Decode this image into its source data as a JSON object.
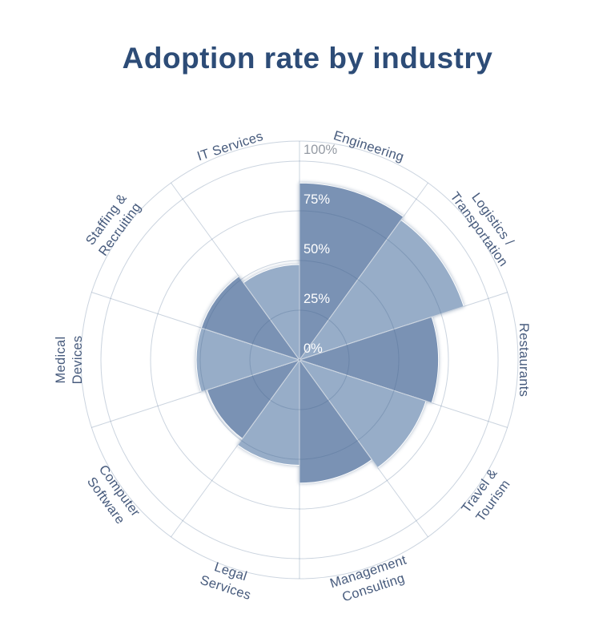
{
  "chart_data": {
    "type": "bar",
    "subtype": "polar-rose",
    "title": "Adoption rate by industry",
    "categories": [
      "Engineering",
      "Logistics / Transportation",
      "Restaurants",
      "Travel & Tourism",
      "Management Consulting",
      "Legal Services",
      "Computer Software",
      "Medical Devices",
      "Staffing & Recruiting",
      "IT Services"
    ],
    "category_label_lines": [
      [
        "Engineering"
      ],
      [
        "Logistics /",
        "Transportation"
      ],
      [
        "Restaurants"
      ],
      [
        "Travel &",
        "Tourism"
      ],
      [
        "Management",
        "Consulting"
      ],
      [
        "Legal",
        "Services"
      ],
      [
        "Computer",
        "Software"
      ],
      [
        "Medical",
        "Devices"
      ],
      [
        "Staffing &",
        "Recruiting"
      ],
      [
        "IT Services"
      ]
    ],
    "values": [
      89,
      87,
      70,
      67,
      62,
      53,
      49,
      52,
      52,
      48
    ],
    "unit": "%",
    "shades": [
      "dark",
      "light",
      "dark",
      "light",
      "dark",
      "light",
      "dark",
      "light",
      "dark",
      "light"
    ],
    "radial_ticks": [
      "0%",
      "25%",
      "50%",
      "75%",
      "100%"
    ],
    "radial_tick_values": [
      0,
      25,
      50,
      75,
      100
    ],
    "axis_min": 0,
    "axis_max": 100,
    "grid": true,
    "legend": "none",
    "sector_angle_deg": 36,
    "start_angle_deg": 0
  },
  "colors": {
    "wedge_dark": "#7a92b4",
    "wedge_light": "#97adc8",
    "title": "#2d4c77",
    "category_label": "#465a7c",
    "grid_line": "rgba(70,100,140,0.28)",
    "tick_label_inside": "#ffffff",
    "tick_label_outside": "#949aa3",
    "background": "#ffffff"
  }
}
